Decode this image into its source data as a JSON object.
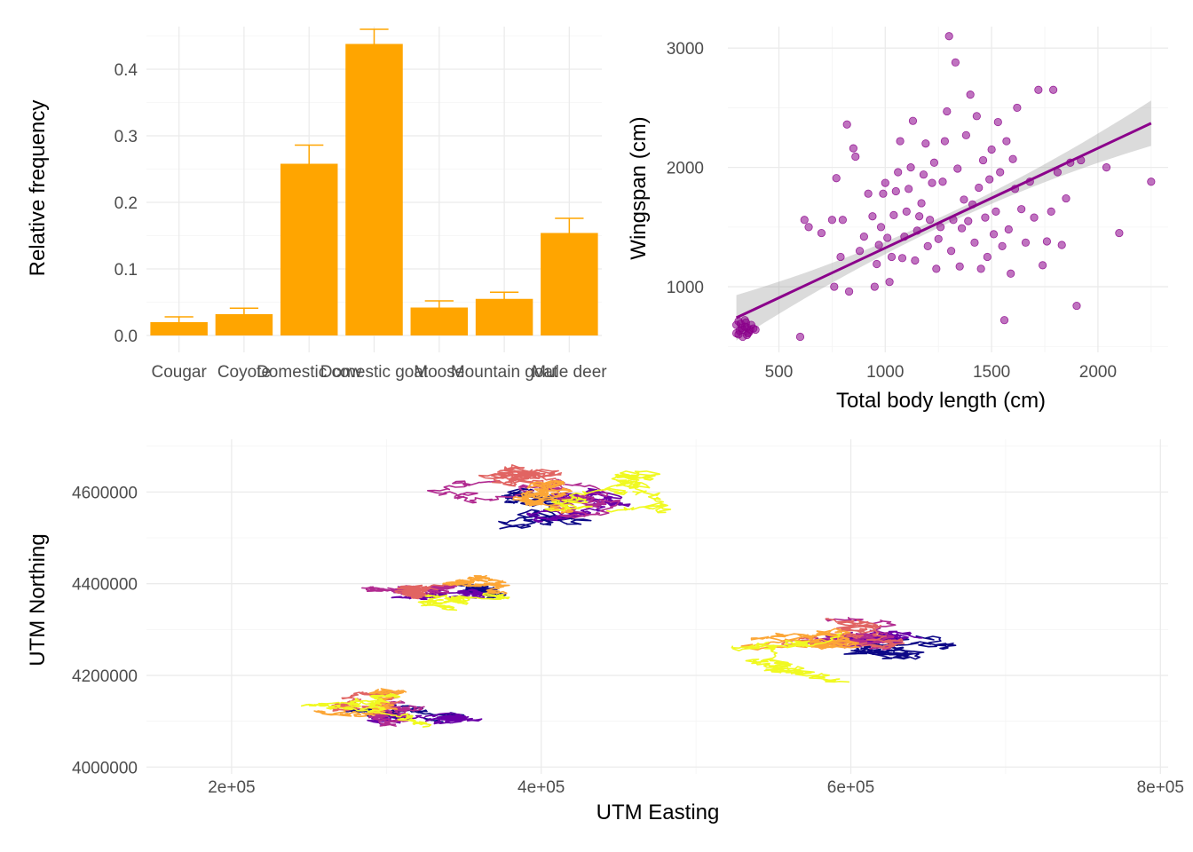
{
  "chart_data": [
    {
      "type": "bar",
      "title": "",
      "xlabel": "",
      "ylabel": "Relative frequency",
      "ylim": [
        0,
        0.46
      ],
      "yticks": [
        "0.0",
        "0.1",
        "0.2",
        "0.3",
        "0.4"
      ],
      "categories": [
        "Cougar",
        "Coyote",
        "Domestic cow",
        "Domestic goat",
        "Moose",
        "Mountain goat",
        "Mule deer"
      ],
      "values": [
        0.02,
        0.032,
        0.258,
        0.438,
        0.042,
        0.055,
        0.154
      ],
      "error_upper": [
        0.028,
        0.041,
        0.286,
        0.46,
        0.052,
        0.065,
        0.176
      ],
      "color": "#FFA500",
      "grid": true
    },
    {
      "type": "scatter",
      "title": "",
      "xlabel": "Total body length (cm)",
      "ylabel": "Wingspan (cm)",
      "xlim": [
        260,
        2330
      ],
      "ylim": [
        450,
        3180
      ],
      "xticks": [
        "500",
        "1000",
        "1500",
        "2000"
      ],
      "yticks": [
        "1000",
        "2000",
        "3000"
      ],
      "color": "#8B008B",
      "trend_line": {
        "x": [
          300,
          2250
        ],
        "y": [
          740,
          2370
        ]
      },
      "points": [
        [
          330,
          640
        ],
        [
          350,
          660
        ],
        [
          310,
          600
        ],
        [
          300,
          680
        ],
        [
          340,
          720
        ],
        [
          360,
          620
        ],
        [
          320,
          690
        ],
        [
          380,
          650
        ],
        [
          330,
          580
        ],
        [
          345,
          700
        ],
        [
          315,
          630
        ],
        [
          355,
          610
        ],
        [
          300,
          610
        ],
        [
          370,
          680
        ],
        [
          390,
          640
        ],
        [
          325,
          655
        ],
        [
          340,
          665
        ],
        [
          350,
          595
        ],
        [
          310,
          710
        ],
        [
          365,
          640
        ],
        [
          600,
          580
        ],
        [
          620,
          1560
        ],
        [
          640,
          1500
        ],
        [
          700,
          1450
        ],
        [
          750,
          1560
        ],
        [
          770,
          1910
        ],
        [
          760,
          1000
        ],
        [
          790,
          1250
        ],
        [
          800,
          1560
        ],
        [
          820,
          2360
        ],
        [
          850,
          2160
        ],
        [
          860,
          2090
        ],
        [
          830,
          960
        ],
        [
          880,
          1300
        ],
        [
          900,
          1420
        ],
        [
          920,
          1780
        ],
        [
          940,
          1590
        ],
        [
          950,
          1000
        ],
        [
          960,
          1190
        ],
        [
          970,
          1350
        ],
        [
          980,
          1500
        ],
        [
          990,
          1780
        ],
        [
          1000,
          1870
        ],
        [
          1010,
          1410
        ],
        [
          1020,
          1040
        ],
        [
          1030,
          1250
        ],
        [
          1040,
          1600
        ],
        [
          1050,
          1800
        ],
        [
          1060,
          1960
        ],
        [
          1070,
          2220
        ],
        [
          1080,
          1240
        ],
        [
          1090,
          1420
        ],
        [
          1100,
          1630
        ],
        [
          1110,
          1820
        ],
        [
          1120,
          2000
        ],
        [
          1130,
          2390
        ],
        [
          1140,
          1220
        ],
        [
          1150,
          1470
        ],
        [
          1160,
          1590
        ],
        [
          1170,
          1700
        ],
        [
          1180,
          1940
        ],
        [
          1190,
          2200
        ],
        [
          1200,
          1340
        ],
        [
          1210,
          1560
        ],
        [
          1220,
          1870
        ],
        [
          1230,
          2040
        ],
        [
          1240,
          1150
        ],
        [
          1250,
          1400
        ],
        [
          1260,
          1500
        ],
        [
          1270,
          1880
        ],
        [
          1280,
          2220
        ],
        [
          1290,
          2470
        ],
        [
          1300,
          3100
        ],
        [
          1310,
          1300
        ],
        [
          1320,
          1560
        ],
        [
          1330,
          2880
        ],
        [
          1340,
          1990
        ],
        [
          1350,
          1170
        ],
        [
          1360,
          1490
        ],
        [
          1370,
          1730
        ],
        [
          1380,
          2270
        ],
        [
          1390,
          1550
        ],
        [
          1400,
          2610
        ],
        [
          1410,
          1690
        ],
        [
          1420,
          1370
        ],
        [
          1430,
          2430
        ],
        [
          1440,
          1830
        ],
        [
          1450,
          1150
        ],
        [
          1460,
          2060
        ],
        [
          1470,
          1580
        ],
        [
          1480,
          1250
        ],
        [
          1490,
          1900
        ],
        [
          1500,
          2150
        ],
        [
          1510,
          1440
        ],
        [
          1520,
          1630
        ],
        [
          1530,
          2380
        ],
        [
          1540,
          1960
        ],
        [
          1550,
          1340
        ],
        [
          1560,
          720
        ],
        [
          1570,
          2220
        ],
        [
          1580,
          1480
        ],
        [
          1590,
          1110
        ],
        [
          1600,
          2070
        ],
        [
          1610,
          1820
        ],
        [
          1620,
          2500
        ],
        [
          1640,
          1650
        ],
        [
          1660,
          1370
        ],
        [
          1680,
          1880
        ],
        [
          1700,
          1580
        ],
        [
          1720,
          2650
        ],
        [
          1740,
          1180
        ],
        [
          1760,
          1380
        ],
        [
          1780,
          1630
        ],
        [
          1790,
          2650
        ],
        [
          1810,
          1960
        ],
        [
          1830,
          1350
        ],
        [
          1850,
          1740
        ],
        [
          1870,
          2040
        ],
        [
          1900,
          840
        ],
        [
          1920,
          2060
        ],
        [
          2040,
          2000
        ],
        [
          2100,
          1450
        ],
        [
          2250,
          1880
        ]
      ]
    },
    {
      "type": "line",
      "title": "",
      "xlabel": "UTM Easting",
      "ylabel": "UTM Northing",
      "xlim": [
        145000,
        805000
      ],
      "ylim": [
        3985000,
        4715000
      ],
      "xticks": [
        "2e+05",
        "4e+05",
        "6e+05",
        "8e+05"
      ],
      "yticks": [
        "4000000",
        "4200000",
        "4400000",
        "4600000"
      ],
      "palette": [
        "#0D0887",
        "#6A00A8",
        "#B12A90",
        "#E16462",
        "#FCA636",
        "#F0F921"
      ],
      "clusters": [
        {
          "cx": 280000,
          "cy": 4120000,
          "rx": 100000,
          "ry": 80000
        },
        {
          "cx": 420000,
          "cy": 4580000,
          "rx": 150000,
          "ry": 130000
        },
        {
          "cx": 360000,
          "cy": 4380000,
          "rx": 100000,
          "ry": 70000
        },
        {
          "cx": 610000,
          "cy": 4260000,
          "rx": 155000,
          "ry": 100000
        }
      ]
    }
  ]
}
